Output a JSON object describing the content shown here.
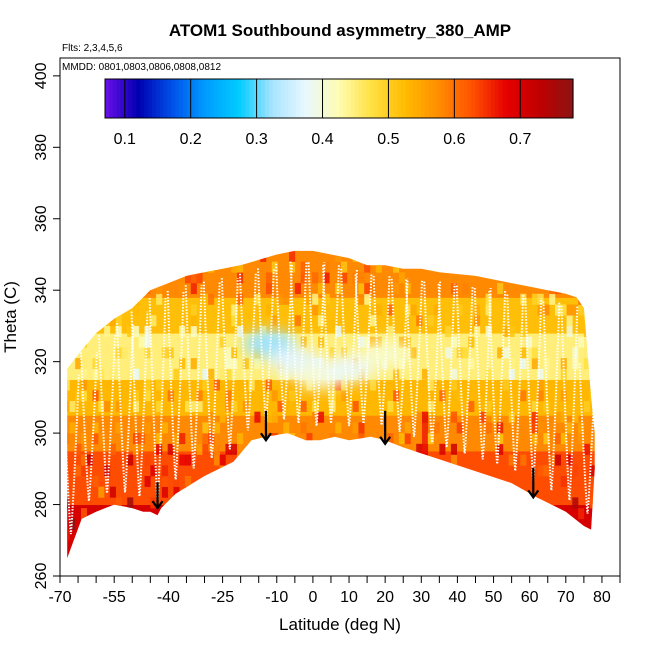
{
  "chart_data": {
    "type": "heatmap",
    "title": "ATOM1 Southbound asymmetry_380_AMP",
    "notes": [
      "Flts: 2,3,4,5,6",
      "MMDD: 0801,0803,0806,0808,0812"
    ],
    "xlabel": "Latitude (deg N)",
    "ylabel": "Theta (C)",
    "xlim": [
      -70,
      85
    ],
    "ylim": [
      260,
      405
    ],
    "xticks": [
      -70,
      -55,
      -40,
      -25,
      -10,
      0,
      10,
      20,
      30,
      40,
      50,
      60,
      70,
      80
    ],
    "x_minor_ticks": [
      -65,
      -60,
      -50,
      -45,
      -35,
      -30,
      -20,
      -15,
      -5,
      5,
      15,
      25,
      35,
      45,
      55,
      65,
      75,
      85
    ],
    "yticks": [
      260,
      280,
      300,
      320,
      340,
      360,
      380,
      400
    ],
    "colorbar": {
      "range": [
        0.07,
        0.78
      ],
      "ticks": [
        0.1,
        0.2,
        0.3,
        0.4,
        0.5,
        0.6,
        0.7
      ],
      "palette": [
        "#6a10e8",
        "#0000b0",
        "#0050e8",
        "#009cff",
        "#00ccff",
        "#a8e4ff",
        "#e8f8ff",
        "#fffcb0",
        "#ffe040",
        "#ffba00",
        "#ff8c00",
        "#ff5000",
        "#e60000",
        "#c00000",
        "#8c1414"
      ]
    },
    "lower_boundary": [
      [
        -68,
        265
      ],
      [
        -64,
        276
      ],
      [
        -60,
        278
      ],
      [
        -55,
        280
      ],
      [
        -50,
        279
      ],
      [
        -47,
        278
      ],
      [
        -45,
        278
      ],
      [
        -43,
        277
      ],
      [
        -42,
        279
      ],
      [
        -38,
        283
      ],
      [
        -30,
        288
      ],
      [
        -22,
        292
      ],
      [
        -17,
        298
      ],
      [
        -13,
        299
      ],
      [
        -7,
        300
      ],
      [
        -2,
        298
      ],
      [
        2,
        298
      ],
      [
        6,
        299
      ],
      [
        10,
        298
      ],
      [
        16,
        299
      ],
      [
        20,
        298
      ],
      [
        25,
        296
      ],
      [
        40,
        291
      ],
      [
        55,
        286
      ],
      [
        62,
        282
      ],
      [
        70,
        278
      ],
      [
        75,
        274
      ],
      [
        77,
        273
      ]
    ],
    "upper_boundary": [
      [
        -68,
        318
      ],
      [
        -65,
        322
      ],
      [
        -60,
        328
      ],
      [
        -55,
        332
      ],
      [
        -50,
        335
      ],
      [
        -45,
        340
      ],
      [
        -40,
        342
      ],
      [
        -35,
        344
      ],
      [
        -30,
        345
      ],
      [
        -25,
        346
      ],
      [
        -20,
        347
      ],
      [
        -10,
        350
      ],
      [
        -5,
        351
      ],
      [
        0,
        351
      ],
      [
        5,
        350
      ],
      [
        10,
        349
      ],
      [
        15,
        347
      ],
      [
        20,
        347
      ],
      [
        25,
        346
      ],
      [
        30,
        346
      ],
      [
        35,
        345
      ],
      [
        45,
        344
      ],
      [
        50,
        343
      ],
      [
        55,
        342
      ],
      [
        60,
        341
      ],
      [
        65,
        340
      ],
      [
        70,
        339
      ],
      [
        73,
        338
      ],
      [
        75,
        335
      ],
      [
        77,
        310
      ],
      [
        78,
        300
      ],
      [
        78,
        290
      ],
      [
        77,
        273
      ]
    ],
    "field_bands": [
      {
        "theta_range": [
          265,
          280
        ],
        "value": 0.7
      },
      {
        "theta_range": [
          280,
          295
        ],
        "value": 0.63
      },
      {
        "theta_range": [
          295,
          305
        ],
        "value": 0.58
      },
      {
        "theta_range": [
          305,
          315
        ],
        "value": 0.53
      },
      {
        "theta_range": [
          315,
          328
        ],
        "value": 0.45
      },
      {
        "theta_range": [
          328,
          338
        ],
        "value": 0.52
      },
      {
        "theta_range": [
          338,
          352
        ],
        "value": 0.58
      }
    ],
    "low_value_patches": [
      {
        "lat": -12,
        "theta": 325,
        "value": 0.32
      },
      {
        "lat": -5,
        "theta": 320,
        "value": 0.37
      },
      {
        "lat": 2,
        "theta": 316,
        "value": 0.4
      },
      {
        "lat": 10,
        "theta": 318,
        "value": 0.38
      },
      {
        "lat": 20,
        "theta": 322,
        "value": 0.41
      }
    ],
    "arrows": [
      {
        "lat": -43,
        "theta_from": 284,
        "theta_to": 279
      },
      {
        "lat": -13,
        "theta_from": 304,
        "theta_to": 298
      },
      {
        "lat": 20,
        "theta_from": 304,
        "theta_to": 297
      },
      {
        "lat": 61,
        "theta_from": 288,
        "theta_to": 282
      }
    ],
    "flight_track_lats": [
      -67,
      -62,
      -57,
      -52,
      -48,
      -43,
      -38,
      -33,
      -28,
      -23,
      -18,
      -13,
      -8,
      -4,
      1,
      5,
      10,
      14,
      19,
      24,
      28,
      33,
      37,
      42,
      47,
      51,
      56,
      61,
      66,
      71,
      76
    ],
    "grid": false
  }
}
